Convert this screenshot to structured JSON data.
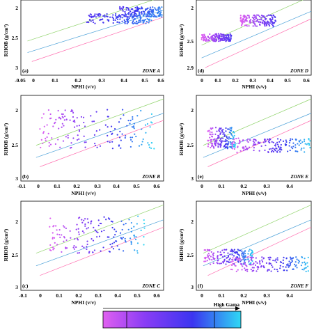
{
  "chart_data": [
    {
      "id": "a",
      "type": "scatter",
      "panel_label": "(a)",
      "zone": "ZONE A",
      "xlabel": "NPHI (v/v)",
      "ylabel": "RHOB (g/cm³)",
      "xticks": [
        "-0.05",
        "0",
        "0.1",
        "0.2",
        "0.3",
        "0.4",
        "0.5",
        "0.6"
      ],
      "yticks": [
        "2",
        "2.5",
        "3"
      ],
      "xlim": [
        -0.05,
        0.6
      ],
      "ylim": [
        1.95,
        3.05
      ],
      "cloud": [
        {
          "x": [
            0.4,
            0.6
          ],
          "y": [
            2.05,
            2.2
          ]
        },
        {
          "x": [
            0.25,
            0.55
          ],
          "y": [
            2.15,
            2.3
          ]
        }
      ],
      "color_range": [
        0.55,
        0.85
      ]
    },
    {
      "id": "d",
      "type": "scatter",
      "panel_label": "(d)",
      "zone": "ZONE D",
      "xlabel": "NPHI (v/v)",
      "ylabel": "RHOB (g/cm³)",
      "xticks": [
        "0",
        "0.1",
        "0.2",
        "0.3",
        "0.4",
        "0.5",
        "0.6"
      ],
      "yticks": [
        "2",
        "2.5",
        "2.9"
      ],
      "xlim": [
        -0.05,
        0.6
      ],
      "ylim": [
        1.95,
        2.95
      ],
      "cloud": [
        {
          "x": [
            0.2,
            0.4
          ],
          "y": [
            2.15,
            2.3
          ]
        },
        {
          "x": [
            -0.02,
            0.15
          ],
          "y": [
            2.4,
            2.5
          ]
        }
      ],
      "color_range": [
        0.0,
        0.6
      ]
    },
    {
      "id": "b",
      "type": "scatter",
      "panel_label": "(b)",
      "zone": "ZONE B",
      "xlabel": "NPHI (v/v)",
      "ylabel": "RHOB (g/cm³)",
      "xticks": [
        "-0.1",
        "0",
        "0.1",
        "0.2",
        "0.3",
        "0.4",
        "0.5",
        "0.6"
      ],
      "yticks": [
        "2",
        "2.5",
        "3"
      ],
      "xlim": [
        -0.1,
        0.65
      ],
      "ylim": [
        1.85,
        3.05
      ],
      "cloud": [
        {
          "x": [
            0.0,
            0.6
          ],
          "y": [
            2.05,
            2.6
          ]
        }
      ],
      "color_range": [
        0.0,
        1.0
      ]
    },
    {
      "id": "e",
      "type": "scatter",
      "panel_label": "(e)",
      "zone": "ZONE E",
      "xlabel": "NPHI (v/v)",
      "ylabel": "RHOB (g/cm³)",
      "xticks": [
        "0",
        "0.1",
        "0.2",
        "0.3",
        "0.4"
      ],
      "yticks": [
        "2",
        "2.5",
        "3"
      ],
      "xlim": [
        -0.05,
        0.45
      ],
      "ylim": [
        1.85,
        3.05
      ],
      "cloud": [
        {
          "x": [
            0.0,
            0.12
          ],
          "y": [
            2.3,
            2.6
          ]
        },
        {
          "x": [
            0.1,
            0.45
          ],
          "y": [
            2.45,
            2.65
          ]
        }
      ],
      "color_range": [
        0.0,
        1.0
      ]
    },
    {
      "id": "c",
      "type": "scatter",
      "panel_label": "(c)",
      "zone": "ZONE C",
      "xlabel": "NPHI (v/v)",
      "ylabel": "RHOB (g/cm³)",
      "xticks": [
        "-0.1",
        "0",
        "0.1",
        "0.2",
        "0.3",
        "0.4",
        "0.5",
        "0.6"
      ],
      "yticks": [
        "2",
        "2.5",
        "3"
      ],
      "xlim": [
        -0.1,
        0.65
      ],
      "ylim": [
        1.85,
        3.05
      ],
      "cloud": [
        {
          "x": [
            0.05,
            0.55
          ],
          "y": [
            2.05,
            2.55
          ]
        }
      ],
      "color_range": [
        0.0,
        1.0
      ]
    },
    {
      "id": "f",
      "type": "scatter",
      "panel_label": "(f)",
      "zone": "ZONE F",
      "xlabel": "NPHI (v/v)",
      "ylabel": "RHOB (g/cm³)",
      "xticks": [
        "0",
        "0.1",
        "0.2",
        "0.3",
        "0.4"
      ],
      "yticks": [
        "2",
        "2.5",
        "3"
      ],
      "xlim": [
        -0.05,
        0.45
      ],
      "ylim": [
        1.85,
        3.05
      ],
      "cloud": [
        {
          "x": [
            -0.02,
            0.2
          ],
          "y": [
            2.5,
            2.7
          ]
        },
        {
          "x": [
            0.1,
            0.45
          ],
          "y": [
            2.6,
            2.8
          ]
        }
      ],
      "color_range": [
        0.0,
        1.0
      ]
    }
  ],
  "colorbar": {
    "label": "High Gama",
    "colors": [
      "#e060f0",
      "#8a3df5",
      "#3b35f0",
      "#2fd8f4"
    ]
  }
}
